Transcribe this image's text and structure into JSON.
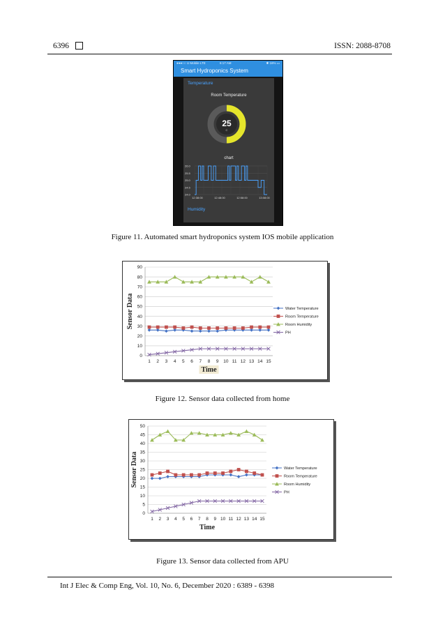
{
  "header": {
    "page_number": "6396",
    "issn": "ISSN: 2088-8708"
  },
  "footer": {
    "citation": "Int J Elec & Comp Eng, Vol. 10, No. 6, December 2020 :  6389 - 6398"
  },
  "figure11": {
    "caption": "Figure 11. Automated smart hydroponics system IOS mobile application",
    "status_left": "●●●○○ U Mobile LTE",
    "status_time": "6:17 AM",
    "status_right": "✱ 16% ▭",
    "app_title": "Smart Hydroponics System",
    "section_temperature": "Temperature",
    "gauge_title": "Room Temperature",
    "gauge_value": "25",
    "gauge_unit": "C",
    "gauge_fraction": 0.5,
    "chart_title": "chart",
    "section_humidity": "Humidity",
    "colors": {
      "appbar": "#2f8fe0",
      "gauge_fill": "#e5e52b",
      "chart_line": "#4aa3ff",
      "section": "#4aa3ff"
    },
    "chart_data": {
      "type": "line",
      "title": "chart",
      "yticks": [
        "26.0",
        "25.5",
        "25.0",
        "24.5",
        "24.0"
      ],
      "ylim": [
        24.0,
        26.0
      ],
      "xticks": [
        "12:38:00",
        "12:48:00",
        "12:58:00",
        "13:08:00"
      ],
      "x": [
        0,
        2,
        2,
        5,
        5,
        8,
        8,
        10,
        10,
        12,
        12,
        18,
        18,
        22,
        22,
        25,
        25,
        28,
        28,
        44,
        44,
        46,
        46,
        48,
        48,
        54,
        54,
        56,
        56,
        58,
        58,
        62,
        62,
        66,
        66,
        68,
        68,
        70,
        70,
        84,
        84,
        88,
        88,
        92,
        92,
        96
      ],
      "y": [
        24.0,
        24.0,
        25.0,
        25.0,
        26.0,
        26.0,
        25.0,
        25.0,
        26.0,
        26.0,
        25.0,
        25.0,
        26.0,
        26.0,
        25.0,
        25.0,
        26.0,
        26.0,
        25.0,
        25.0,
        26.0,
        26.0,
        25.0,
        25.0,
        26.0,
        26.0,
        25.0,
        25.0,
        26.0,
        26.0,
        25.0,
        25.0,
        26.0,
        26.0,
        25.0,
        25.0,
        26.0,
        26.0,
        25.0,
        25.0,
        24.5,
        24.5,
        25.0,
        25.0,
        24.0,
        24.0
      ]
    }
  },
  "figure12": {
    "caption": "Figure 12. Sensor data collected from home",
    "chart_data": {
      "type": "line",
      "xlabel": "Time",
      "ylabel": "Sensor Data",
      "ylim": [
        0,
        90
      ],
      "yticks": [
        0,
        10,
        20,
        30,
        40,
        50,
        60,
        70,
        80,
        90
      ],
      "x": [
        1,
        2,
        3,
        4,
        5,
        6,
        7,
        8,
        9,
        10,
        11,
        12,
        13,
        14,
        15
      ],
      "legend_position": "right",
      "grid": true,
      "series": [
        {
          "name": "Water Temperature",
          "color": "#4472c4",
          "marker": "diamond",
          "values": [
            26,
            26,
            25,
            26,
            26,
            25,
            25,
            25,
            25,
            26,
            26,
            26,
            26,
            26,
            26
          ]
        },
        {
          "name": "Room Temperature",
          "color": "#c0504d",
          "marker": "square",
          "values": [
            29,
            29,
            29,
            29,
            28,
            29,
            28,
            28,
            28,
            28,
            28,
            28,
            29,
            29,
            29
          ]
        },
        {
          "name": "Room Humidity",
          "color": "#9bbb59",
          "marker": "triangle",
          "values": [
            75,
            75,
            75,
            80,
            75,
            75,
            75,
            80,
            80,
            80,
            80,
            80,
            75,
            80,
            75
          ]
        },
        {
          "name": "PH",
          "color": "#8064a2",
          "marker": "x",
          "values": [
            1,
            2,
            3,
            4,
            5,
            6,
            7,
            7,
            7,
            7,
            7,
            7,
            7,
            7,
            7
          ]
        }
      ]
    }
  },
  "figure13": {
    "caption": "Figure 13.  Sensor data collected from APU",
    "chart_data": {
      "type": "line",
      "xlabel": "Time",
      "ylabel": "Sensor Data",
      "ylim": [
        0,
        50
      ],
      "yticks": [
        0,
        5,
        10,
        15,
        20,
        25,
        30,
        35,
        40,
        45,
        50
      ],
      "x": [
        1,
        2,
        3,
        4,
        5,
        6,
        7,
        8,
        9,
        10,
        11,
        12,
        13,
        14,
        15
      ],
      "legend_position": "right",
      "grid": true,
      "series": [
        {
          "name": "Water Temperature",
          "color": "#4472c4",
          "marker": "diamond",
          "values": [
            20,
            20,
            21,
            21,
            21,
            21,
            21,
            22,
            22,
            22,
            22,
            21,
            22,
            22,
            22
          ]
        },
        {
          "name": "Room Temperature",
          "color": "#c0504d",
          "marker": "square",
          "values": [
            22,
            23,
            24,
            22,
            22,
            22,
            22,
            23,
            23,
            23,
            24,
            25,
            24,
            23,
            22
          ]
        },
        {
          "name": "Room Humidity",
          "color": "#9bbb59",
          "marker": "triangle",
          "values": [
            42,
            45,
            47,
            42,
            42,
            46,
            46,
            45,
            45,
            45,
            46,
            45,
            47,
            45,
            42
          ]
        },
        {
          "name": "PH",
          "color": "#8064a2",
          "marker": "x",
          "values": [
            1,
            2,
            3,
            4,
            5,
            6,
            7,
            7,
            7,
            7,
            7,
            7,
            7,
            7,
            7
          ]
        }
      ]
    }
  }
}
